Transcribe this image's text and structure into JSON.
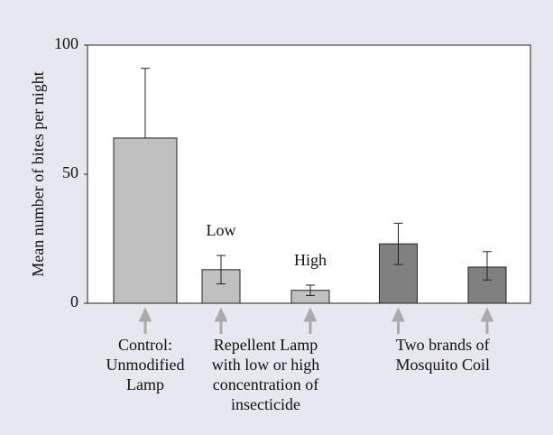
{
  "chart_data": {
    "type": "bar",
    "ylabel": "Mean number of bites per night",
    "categories": [
      null,
      null,
      null,
      null,
      null
    ],
    "values": [
      64,
      13,
      5,
      23,
      14
    ],
    "errors_low": [
      null,
      5.5,
      2,
      8,
      5
    ],
    "errors_high": [
      27,
      5.5,
      2,
      8,
      6
    ],
    "colors": [
      "#c0c0c0",
      "#c0c0c0",
      "#c0c0c0",
      "#808080",
      "#808080"
    ],
    "ylim": [
      0,
      100
    ],
    "yticks": [
      0,
      50,
      100
    ],
    "grid": false,
    "annotations": [
      {
        "text": "Low",
        "bar": 1
      },
      {
        "text": "High",
        "bar": 2
      }
    ],
    "groups": [
      {
        "lines": [
          "Control:",
          "Unmodified",
          "Lamp"
        ],
        "bars": [
          0
        ]
      },
      {
        "lines": [
          "Repellent Lamp",
          "with low or high",
          "concentration of",
          "insecticide"
        ],
        "bars": [
          1,
          2
        ]
      },
      {
        "lines": [
          "Two brands of",
          "Mosquito Coil"
        ],
        "bars": [
          3,
          4
        ]
      }
    ]
  }
}
